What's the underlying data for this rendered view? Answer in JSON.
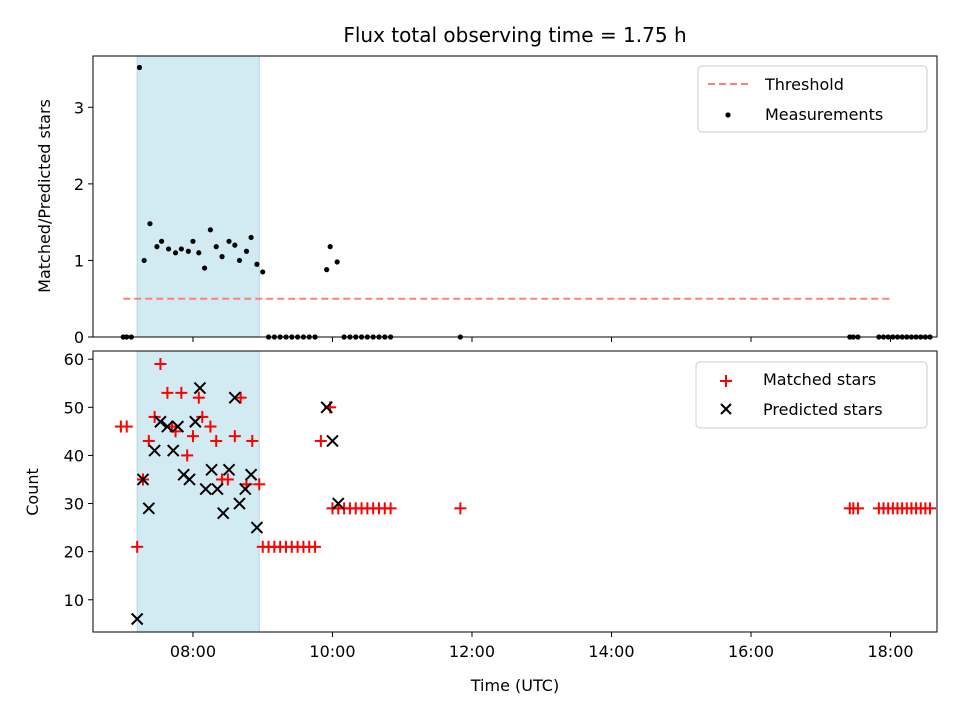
{
  "chart_data": [
    {
      "type": "scatter",
      "title": "Flux total observing time = 1.75 h",
      "xlabel": "",
      "ylabel": "Matched/Predicted stars",
      "ylim": [
        0,
        3.67
      ],
      "yticks": [
        0,
        1,
        2,
        3
      ],
      "xlim": [
        "06:34",
        "18:40"
      ],
      "xticks": [
        "08:00",
        "10:00",
        "12:00",
        "14:00",
        "16:00",
        "18:00"
      ],
      "shaded_region": [
        "07:12",
        "08:57"
      ],
      "legend_position": "upper right",
      "threshold": {
        "name": "Threshold",
        "value": 0.5,
        "x_range": [
          "07:00",
          "18:00"
        ],
        "color": "#ff7f7f"
      },
      "series": [
        {
          "name": "Measurements",
          "color": "#000000",
          "points": [
            [
              "07:00",
              0
            ],
            [
              "07:03",
              0
            ],
            [
              "07:07",
              0
            ],
            [
              "07:14",
              3.52
            ],
            [
              "07:18",
              1.0
            ],
            [
              "07:23",
              1.48
            ],
            [
              "07:29",
              1.18
            ],
            [
              "07:33",
              1.25
            ],
            [
              "07:39",
              1.15
            ],
            [
              "07:45",
              1.1
            ],
            [
              "07:50",
              1.15
            ],
            [
              "07:56",
              1.12
            ],
            [
              "08:00",
              1.25
            ],
            [
              "08:05",
              1.1
            ],
            [
              "08:10",
              0.9
            ],
            [
              "08:15",
              1.4
            ],
            [
              "08:20",
              1.18
            ],
            [
              "08:25",
              1.05
            ],
            [
              "08:31",
              1.25
            ],
            [
              "08:36",
              1.2
            ],
            [
              "08:40",
              1.0
            ],
            [
              "08:46",
              1.12
            ],
            [
              "08:50",
              1.3
            ],
            [
              "08:55",
              0.95
            ],
            [
              "09:00",
              0.85
            ],
            [
              "09:05",
              0
            ],
            [
              "09:10",
              0
            ],
            [
              "09:15",
              0
            ],
            [
              "09:20",
              0
            ],
            [
              "09:25",
              0
            ],
            [
              "09:30",
              0
            ],
            [
              "09:35",
              0
            ],
            [
              "09:40",
              0
            ],
            [
              "09:45",
              0
            ],
            [
              "09:55",
              0.88
            ],
            [
              "09:58",
              1.18
            ],
            [
              "10:04",
              0.98
            ],
            [
              "10:10",
              0
            ],
            [
              "10:15",
              0
            ],
            [
              "10:20",
              0
            ],
            [
              "10:25",
              0
            ],
            [
              "10:30",
              0
            ],
            [
              "10:35",
              0
            ],
            [
              "10:40",
              0
            ],
            [
              "10:45",
              0
            ],
            [
              "10:50",
              0
            ],
            [
              "11:50",
              0
            ],
            [
              "17:25",
              0
            ],
            [
              "17:28",
              0
            ],
            [
              "17:32",
              0
            ],
            [
              "17:50",
              0
            ],
            [
              "17:54",
              0
            ],
            [
              "17:58",
              0
            ],
            [
              "18:02",
              0
            ],
            [
              "18:06",
              0
            ],
            [
              "18:10",
              0
            ],
            [
              "18:14",
              0
            ],
            [
              "18:18",
              0
            ],
            [
              "18:22",
              0
            ],
            [
              "18:26",
              0
            ],
            [
              "18:30",
              0
            ],
            [
              "18:34",
              0
            ]
          ]
        }
      ]
    },
    {
      "type": "scatter",
      "title": "",
      "xlabel": "Time (UTC)",
      "ylabel": "Count",
      "ylim": [
        3.3,
        61.7
      ],
      "yticks": [
        10,
        20,
        30,
        40,
        50,
        60
      ],
      "xlim": [
        "06:34",
        "18:40"
      ],
      "xticks": [
        "08:00",
        "10:00",
        "12:00",
        "14:00",
        "16:00",
        "18:00"
      ],
      "shaded_region": [
        "07:12",
        "08:57"
      ],
      "legend_position": "upper right",
      "series": [
        {
          "name": "Matched stars",
          "marker": "plus",
          "color": "#ff0000",
          "points": [
            [
              "06:58",
              46
            ],
            [
              "07:03",
              46
            ],
            [
              "07:12",
              21
            ],
            [
              "07:17",
              35
            ],
            [
              "07:22",
              43
            ],
            [
              "07:27",
              48
            ],
            [
              "07:32",
              59
            ],
            [
              "07:38",
              53
            ],
            [
              "07:42",
              46
            ],
            [
              "07:45",
              45
            ],
            [
              "07:50",
              53
            ],
            [
              "07:55",
              40
            ],
            [
              "08:00",
              44
            ],
            [
              "08:05",
              52
            ],
            [
              "08:08",
              48
            ],
            [
              "08:15",
              46
            ],
            [
              "08:20",
              43
            ],
            [
              "08:25",
              35
            ],
            [
              "08:30",
              35
            ],
            [
              "08:36",
              44
            ],
            [
              "08:41",
              52
            ],
            [
              "08:46",
              34
            ],
            [
              "08:51",
              43
            ],
            [
              "08:57",
              34
            ],
            [
              "09:00",
              21
            ],
            [
              "09:05",
              21
            ],
            [
              "09:10",
              21
            ],
            [
              "09:15",
              21
            ],
            [
              "09:20",
              21
            ],
            [
              "09:25",
              21
            ],
            [
              "09:30",
              21
            ],
            [
              "09:35",
              21
            ],
            [
              "09:40",
              21
            ],
            [
              "09:45",
              21
            ],
            [
              "09:50",
              43
            ],
            [
              "09:58",
              50
            ],
            [
              "10:00",
              29
            ],
            [
              "10:05",
              29
            ],
            [
              "10:10",
              29
            ],
            [
              "10:15",
              29
            ],
            [
              "10:20",
              29
            ],
            [
              "10:25",
              29
            ],
            [
              "10:30",
              29
            ],
            [
              "10:35",
              29
            ],
            [
              "10:40",
              29
            ],
            [
              "10:45",
              29
            ],
            [
              "10:50",
              29
            ],
            [
              "11:50",
              29
            ],
            [
              "17:25",
              29
            ],
            [
              "17:28",
              29
            ],
            [
              "17:32",
              29
            ],
            [
              "17:50",
              29
            ],
            [
              "17:54",
              29
            ],
            [
              "17:58",
              29
            ],
            [
              "18:02",
              29
            ],
            [
              "18:06",
              29
            ],
            [
              "18:10",
              29
            ],
            [
              "18:14",
              29
            ],
            [
              "18:18",
              29
            ],
            [
              "18:22",
              29
            ],
            [
              "18:26",
              29
            ],
            [
              "18:30",
              29
            ],
            [
              "18:34",
              29
            ]
          ]
        },
        {
          "name": "Predicted stars",
          "marker": "x",
          "color": "#000000",
          "points": [
            [
              "07:12",
              6
            ],
            [
              "07:17",
              35
            ],
            [
              "07:22",
              29
            ],
            [
              "07:27",
              41
            ],
            [
              "07:32",
              47
            ],
            [
              "07:38",
              46
            ],
            [
              "07:43",
              41
            ],
            [
              "07:47",
              46
            ],
            [
              "07:52",
              36
            ],
            [
              "07:57",
              35
            ],
            [
              "08:02",
              47
            ],
            [
              "08:06",
              54
            ],
            [
              "08:11",
              33
            ],
            [
              "08:16",
              37
            ],
            [
              "08:21",
              33
            ],
            [
              "08:26",
              28
            ],
            [
              "08:31",
              37
            ],
            [
              "08:36",
              52
            ],
            [
              "08:40",
              30
            ],
            [
              "08:45",
              33
            ],
            [
              "08:50",
              36
            ],
            [
              "08:55",
              25
            ],
            [
              "09:55",
              50
            ],
            [
              "10:00",
              43
            ],
            [
              "10:05",
              30
            ]
          ]
        }
      ]
    }
  ]
}
